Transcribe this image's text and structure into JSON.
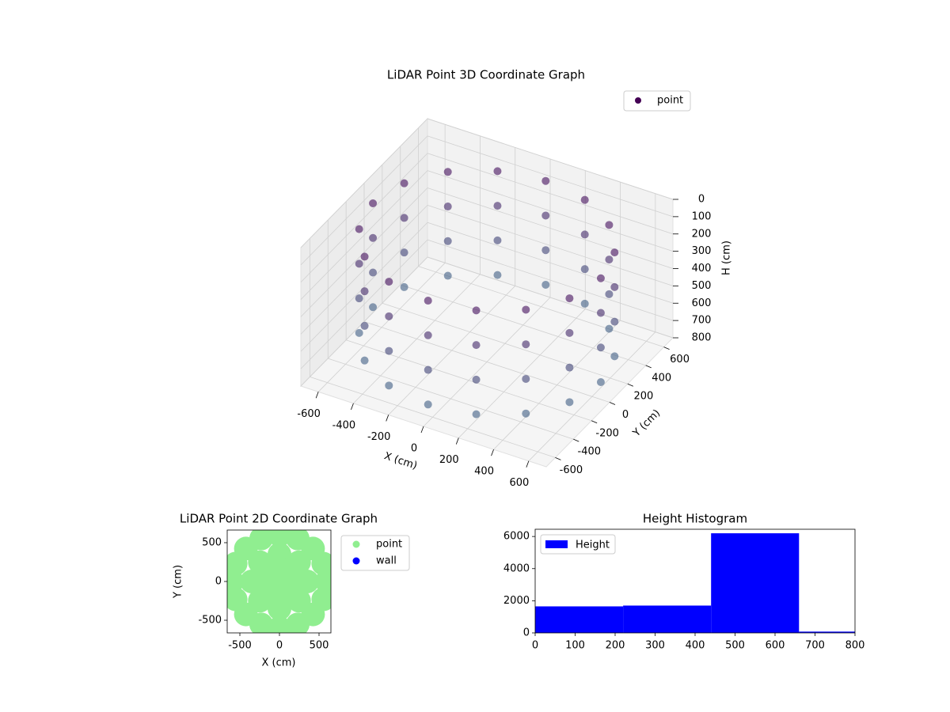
{
  "chart_data": [
    {
      "type": "scatter3d",
      "title": "LiDAR Point 3D Coordinate Graph",
      "xlabel": "X (cm)",
      "ylabel": "Y (cm)",
      "zlabel": "H (cm)",
      "xlim": [
        -700,
        700
      ],
      "ylim": [
        -700,
        700
      ],
      "zlim": [
        800,
        0
      ],
      "xticks": [
        -600,
        -400,
        -200,
        0,
        200,
        400,
        600
      ],
      "yticks": [
        -600,
        -400,
        -200,
        0,
        200,
        400,
        600
      ],
      "zticks": [
        0,
        100,
        200,
        300,
        400,
        500,
        600,
        700,
        800
      ],
      "legend": "upper right",
      "colors": [
        "#440154",
        "#3e6a8b"
      ],
      "series": [
        {
          "name": "point",
          "x": [
            650,
            600,
            460,
            249,
            0,
            -249,
            -460,
            -600,
            -650,
            -600,
            -460,
            -249,
            0,
            249,
            460,
            600,
            650,
            600,
            460,
            249,
            0,
            -249,
            -460,
            -600,
            -650,
            -600,
            -460,
            -249,
            0,
            249,
            460,
            600,
            650,
            600,
            460,
            249,
            0,
            -249,
            -460,
            -600,
            -650,
            -600,
            -460,
            -249,
            0,
            249,
            460,
            600,
            650,
            600,
            460,
            249,
            0,
            -249,
            -460,
            -600,
            -650,
            -600,
            -460,
            -249,
            0,
            249,
            460,
            600
          ],
          "y": [
            0,
            249,
            460,
            600,
            650,
            600,
            460,
            249,
            0,
            -249,
            -460,
            -600,
            -650,
            -600,
            -460,
            -249,
            0,
            249,
            460,
            600,
            650,
            600,
            460,
            249,
            0,
            -249,
            -460,
            -600,
            -650,
            -600,
            -460,
            -249,
            0,
            249,
            460,
            600,
            650,
            600,
            460,
            249,
            0,
            -249,
            -460,
            -600,
            -650,
            -600,
            -460,
            -249,
            0,
            249,
            460,
            600,
            650,
            600,
            460,
            249,
            0,
            -249,
            -460,
            -600,
            -650,
            -600,
            -460,
            -249
          ],
          "z": [
            100,
            100,
            100,
            100,
            100,
            100,
            100,
            100,
            100,
            100,
            100,
            100,
            100,
            100,
            100,
            100,
            300,
            300,
            300,
            300,
            300,
            300,
            300,
            300,
            300,
            300,
            300,
            300,
            300,
            300,
            300,
            300,
            500,
            500,
            500,
            500,
            500,
            500,
            500,
            500,
            500,
            500,
            500,
            500,
            500,
            500,
            500,
            500,
            700,
            700,
            700,
            700,
            700,
            700,
            700,
            700,
            700,
            700,
            700,
            700,
            700,
            700,
            700,
            700
          ]
        }
      ]
    },
    {
      "type": "scatter",
      "title": "LiDAR Point 2D Coordinate Graph",
      "xlabel": "X (cm)",
      "ylabel": "Y (cm)",
      "xlim": [
        -660,
        650
      ],
      "ylim": [
        -663,
        663
      ],
      "xticks": [
        -500,
        0,
        500
      ],
      "yticks": [
        -500,
        0,
        500
      ],
      "legend": "outside right",
      "series": [
        {
          "name": "point",
          "color": "#90ee90",
          "x": [
            600,
            554,
            424,
            230,
            0,
            -230,
            -424,
            -554,
            -600,
            -554,
            -424,
            -230,
            0,
            230,
            424,
            554,
            350,
            247,
            0,
            -247,
            -350,
            -247,
            0,
            247,
            170,
            0,
            -170,
            0,
            0
          ],
          "y": [
            0,
            230,
            424,
            554,
            600,
            554,
            424,
            230,
            0,
            -230,
            -424,
            -554,
            -600,
            -554,
            -424,
            -230,
            0,
            247,
            350,
            247,
            0,
            -247,
            -350,
            -247,
            0,
            170,
            0,
            -170,
            0
          ]
        },
        {
          "name": "wall",
          "color": "#0000ff",
          "x": [],
          "y": []
        }
      ]
    },
    {
      "type": "histogram",
      "title": "Height Histogram",
      "bins": [
        0,
        220,
        440,
        660,
        880
      ],
      "values": [
        1650,
        1700,
        6200,
        80
      ],
      "name": "Height",
      "color": "#0000ff",
      "xlim": [
        0,
        800
      ],
      "ylim": [
        0,
        6450
      ],
      "xticks": [
        0,
        100,
        200,
        300,
        400,
        500,
        600,
        700,
        800
      ],
      "yticks": [
        0,
        2000,
        4000,
        6000
      ],
      "legend": "upper left"
    }
  ]
}
